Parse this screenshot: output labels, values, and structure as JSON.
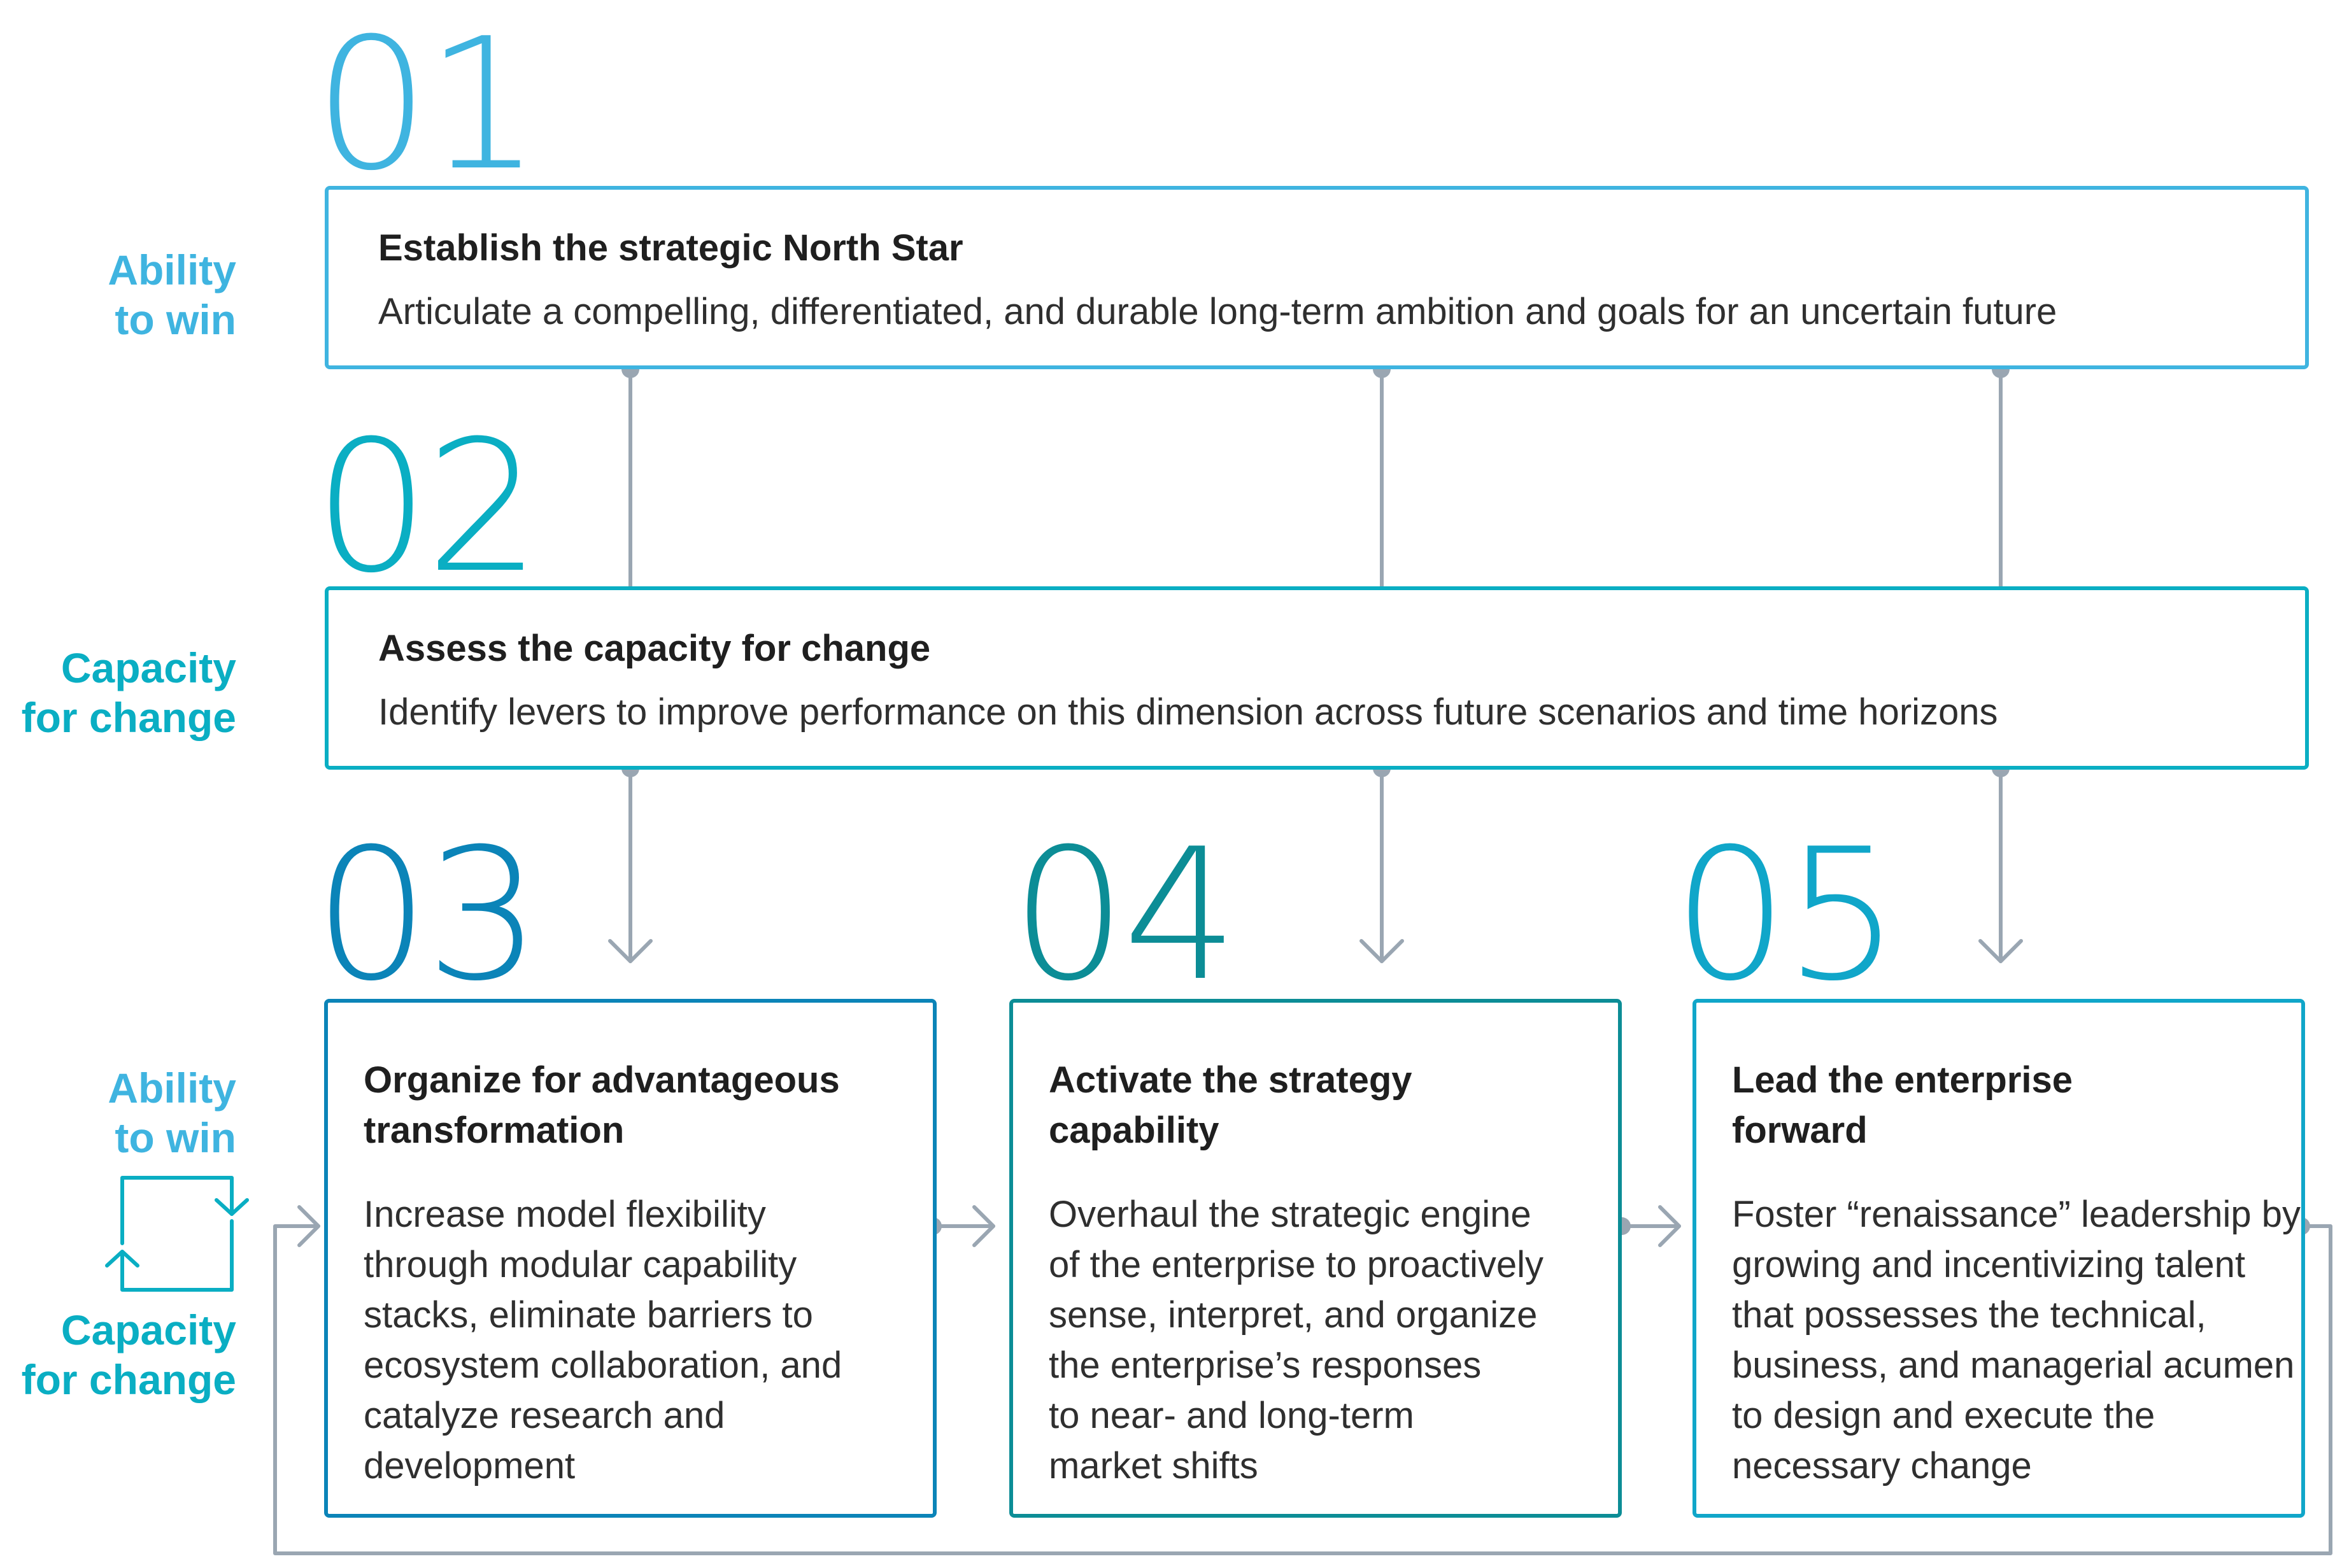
{
  "colors": {
    "accent_light_blue": "#3fb4e0",
    "accent_teal": "#0aaec3",
    "accent_deep_blue": "#0b84b8",
    "accent_dark_teal": "#0c8d96",
    "accent_cyan": "#10a6c9",
    "connector_gray": "#9aa6b2"
  },
  "steps": {
    "s01": {
      "number": "01",
      "title": "Establish the strategic North Star",
      "description": "Articulate a compelling, differentiated, and durable long-term ambition and goals for an uncertain future"
    },
    "s02": {
      "number": "02",
      "title": "Assess the capacity for change",
      "description": "Identify levers to improve performance on this dimension across future scenarios and time horizons"
    },
    "s03": {
      "number": "03",
      "title": "Organize for advantageous\ntransformation",
      "description": "Increase model flexibility\nthrough modular capability\nstacks, eliminate barriers to\necosystem collaboration, and\ncatalyze research and\ndevelopment"
    },
    "s04": {
      "number": "04",
      "title": "Activate the strategy\ncapability",
      "description": "Overhaul the strategic engine\nof the enterprise to proactively\nsense, interpret, and organize\nthe enterprise’s responses\nto near- and long-term\nmarket shifts"
    },
    "s05": {
      "number": "05",
      "title": "Lead the enterprise\nforward",
      "description": "Foster “renaissance” leadership by\ngrowing and incentivizing talent\nthat possesses the technical,\nbusiness, and managerial acumen\nto design and execute the\nnecessary change"
    }
  },
  "side_labels": {
    "row1": "Ability\nto win",
    "row2": "Capacity\nfor change",
    "row3_top": "Ability\nto win",
    "row3_bottom": "Capacity\nfor change"
  }
}
